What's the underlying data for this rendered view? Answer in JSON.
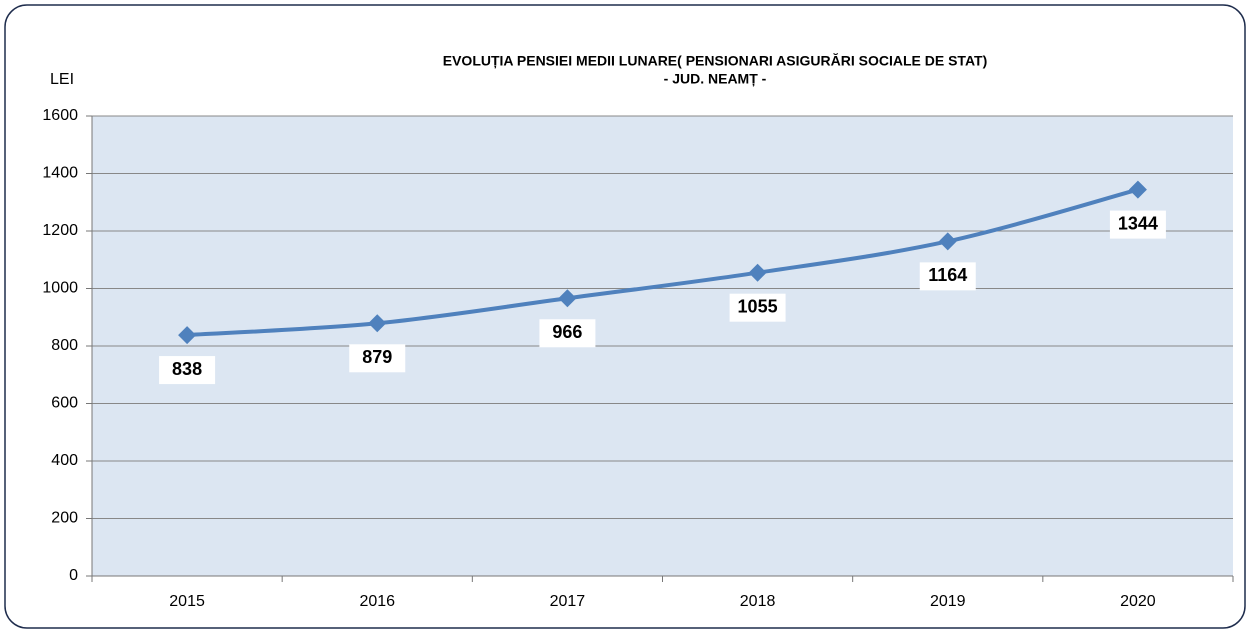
{
  "chart_data": {
    "type": "line",
    "title": "EVOLUȚIA PENSIEI MEDII LUNARE( PENSIONARI ASIGURĂRI SOCIALE DE STAT)",
    "subtitle": "- JUD. NEAMȚ -",
    "y_label": "LEI",
    "categories": [
      "2015",
      "2016",
      "2017",
      "2018",
      "2019",
      "2020"
    ],
    "series": [
      {
        "name": "LEI",
        "color": "#4f81bd",
        "values": [
          838,
          879,
          966,
          1055,
          1164,
          1344
        ]
      }
    ],
    "ylim": [
      0,
      1600
    ],
    "yticks": [
      0,
      200,
      400,
      600,
      800,
      1000,
      1200,
      1400,
      1600
    ],
    "grid": true,
    "plot_background": "#dce6f2"
  }
}
